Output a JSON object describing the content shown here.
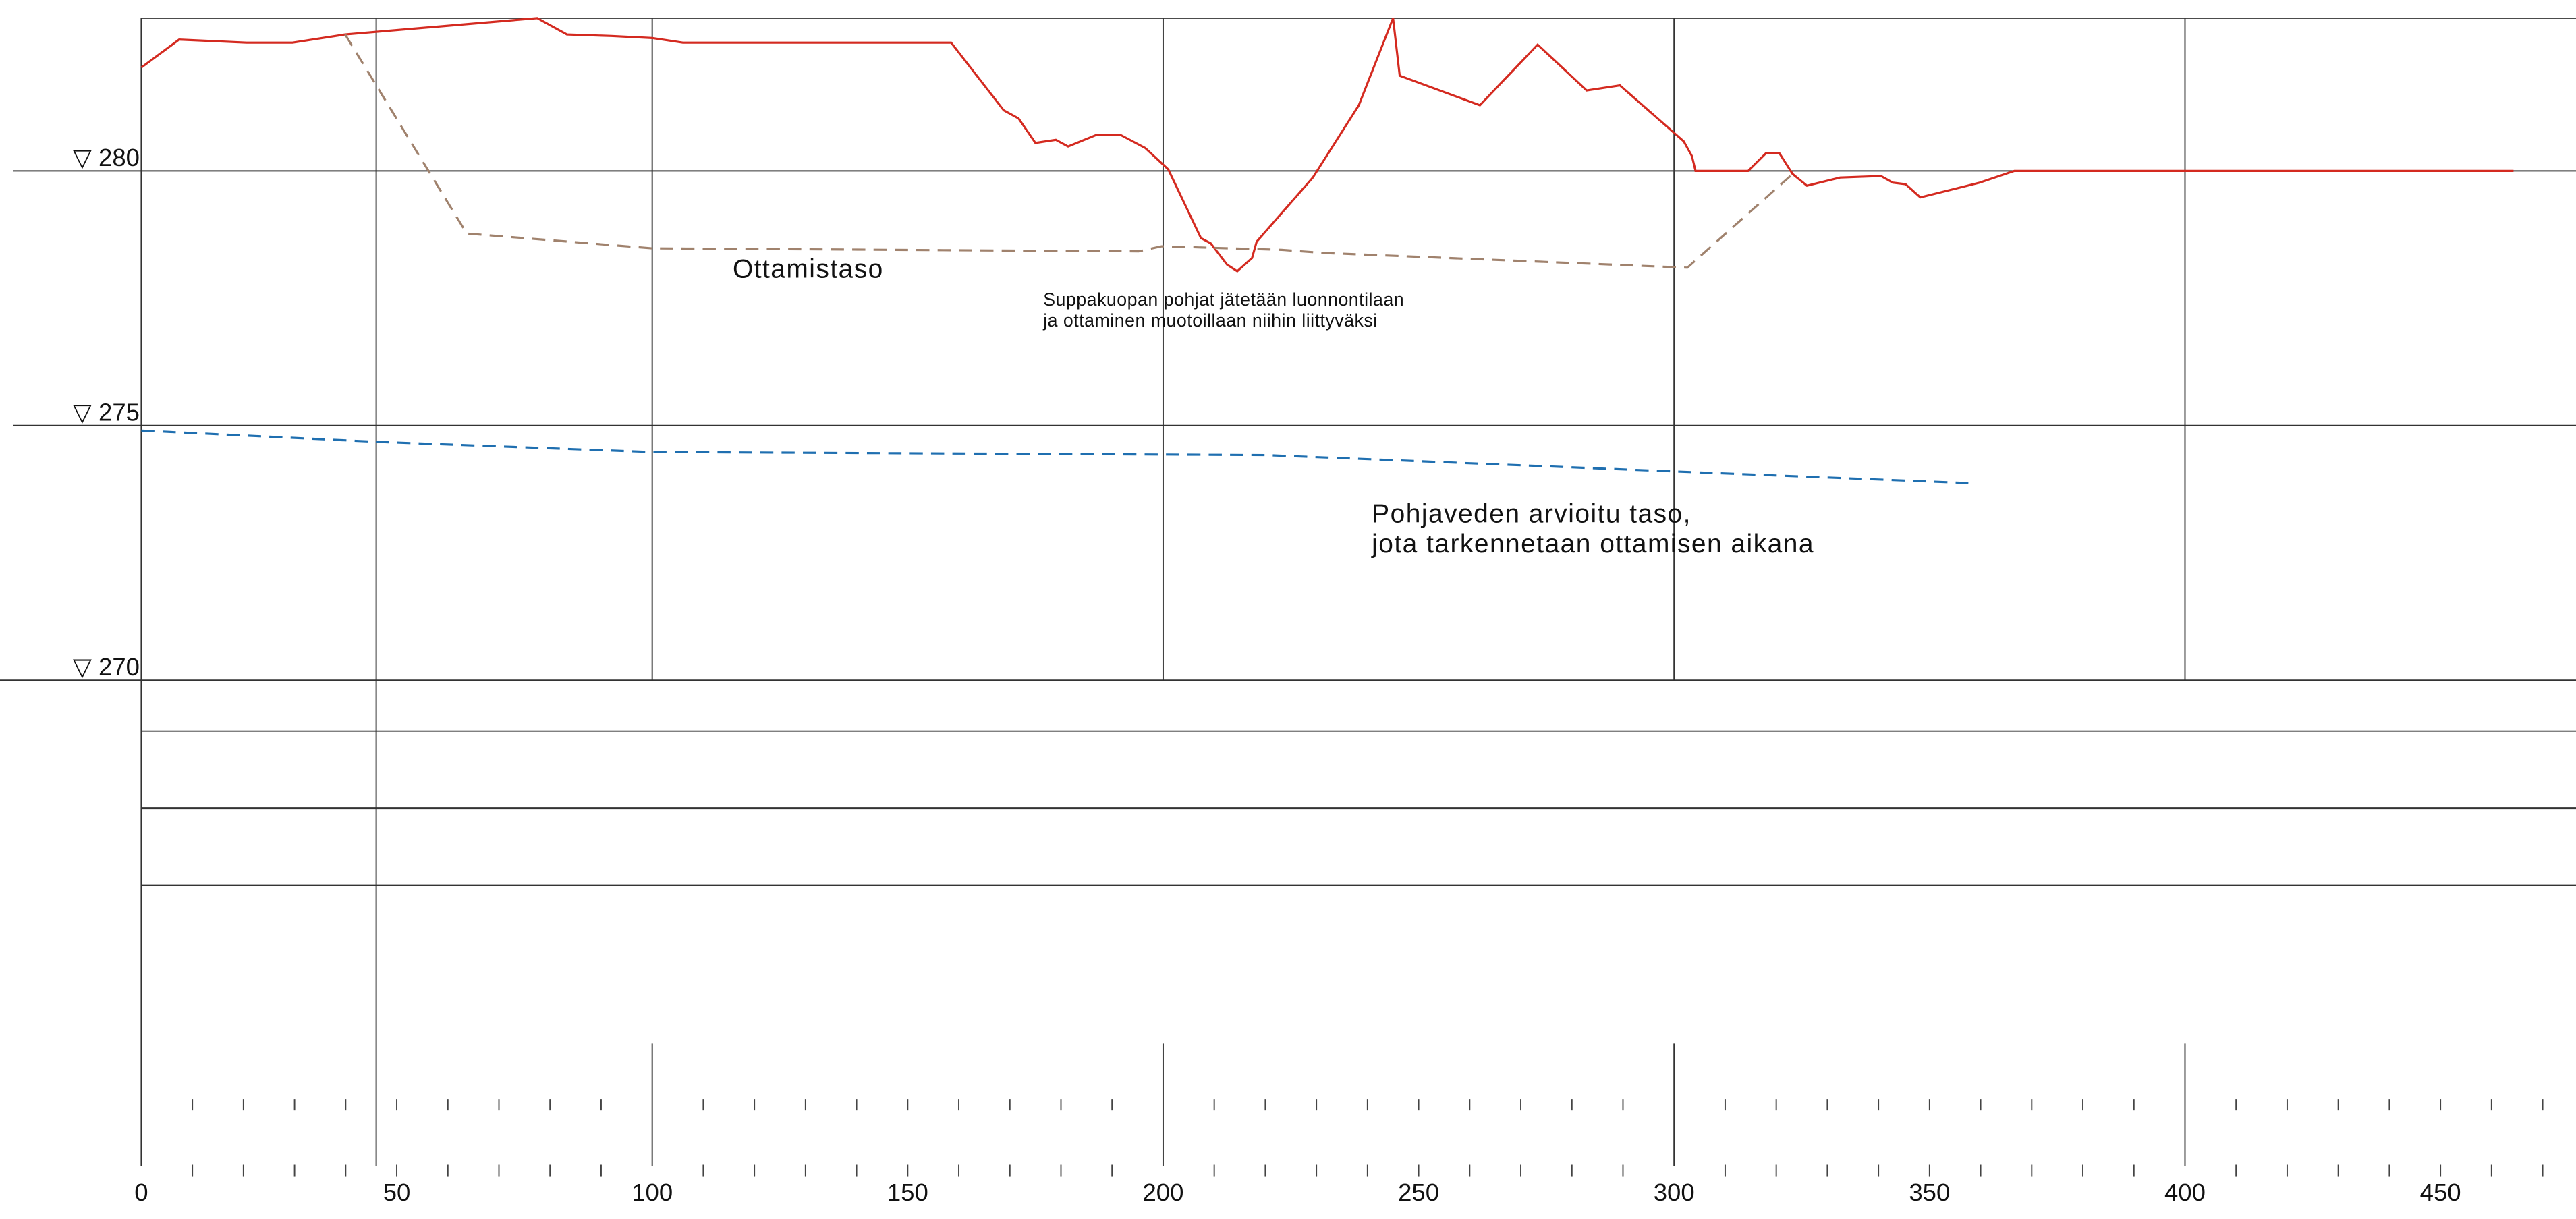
{
  "chart_data": {
    "type": "line",
    "xlim": [
      0,
      476.5
    ],
    "ylim": [
      270,
      283
    ],
    "xticks": [
      0,
      50,
      100,
      150,
      200,
      250,
      300,
      350,
      400,
      450
    ],
    "yticks": [
      {
        "value": 270,
        "label": "▽ 270"
      },
      {
        "value": 275,
        "label": "▽ 275"
      },
      {
        "value": 280,
        "label": "▽ 280"
      }
    ],
    "series": [
      {
        "color": "#d42a20",
        "linestyle": "solid",
        "x": [
          0,
          7.4,
          20.6,
          29.6,
          39.9,
          77.5,
          83.3,
          92,
          100,
          106,
          158.5,
          168.8,
          171.7,
          175,
          179,
          181.4,
          187,
          191.6,
          196.5,
          201,
          207.4,
          209.3,
          212.5,
          214.5,
          217.4,
          218.3,
          229.3,
          238.3,
          245,
          246.3,
          262,
          273.3,
          282.9,
          289.4,
          301.9,
          303.5,
          304.2,
          314.5,
          318,
          320.6,
          323.2,
          326,
          332.5,
          340.5,
          342.8,
          345.3,
          348.2,
          359.8,
          366.6,
          464.3
        ],
        "values": [
          282.03,
          282.58,
          282.52,
          282.52,
          282.68,
          283.0,
          282.68,
          282.65,
          282.61,
          282.52,
          282.52,
          281.19,
          281.03,
          280.55,
          280.61,
          280.48,
          280.71,
          280.71,
          280.45,
          280.03,
          278.68,
          278.58,
          278.16,
          278.03,
          278.29,
          278.61,
          279.87,
          281.29,
          283.0,
          281.87,
          281.29,
          282.48,
          281.58,
          281.68,
          280.58,
          280.29,
          280.0,
          280.0,
          280.35,
          280.35,
          279.94,
          279.71,
          279.87,
          279.9,
          279.77,
          279.74,
          279.48,
          279.77,
          280.0,
          280.0
        ]
      },
      {
        "color": "#a0826d",
        "linestyle": "dashed",
        "x": [
          39.9,
          63.7,
          100,
          195.2,
          199.7,
          223.2,
          231.2,
          302.6,
          323.2
        ],
        "values": [
          282.68,
          278.77,
          278.48,
          278.42,
          278.52,
          278.45,
          278.39,
          278.1,
          279.94
        ]
      },
      {
        "color": "#1f6fb0",
        "linestyle": "dashed",
        "x": [
          0,
          46,
          100,
          220,
          299.7,
          357.6
        ],
        "values": [
          274.9,
          274.68,
          274.48,
          274.42,
          274.1,
          273.87
        ]
      }
    ],
    "annotations": [
      [
        "Ottamistaso"
      ],
      [
        "Suppakuopan pohjat jätetään luonnontilaan",
        "ja ottaminen muotoillaan niihin liittyväksi"
      ],
      [
        "Pohjaveden arvioitu taso,",
        "jota tarkennetaan ottamisen aikana"
      ]
    ]
  }
}
